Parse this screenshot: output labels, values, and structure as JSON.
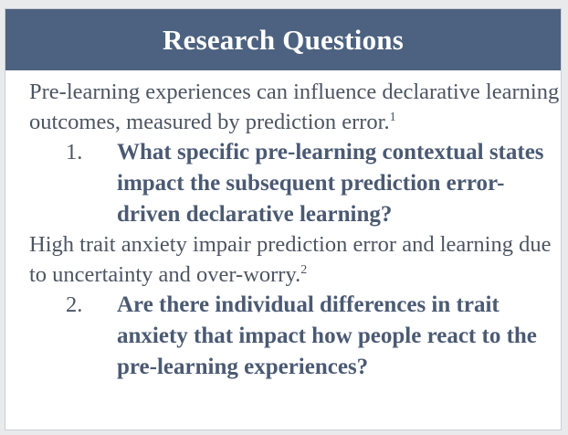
{
  "header": {
    "title": "Research Questions"
  },
  "content": {
    "intro_1": "Pre-learning experiences can influence declarative learning outcomes, measured by prediction error.",
    "intro_1_ref": "1",
    "question_1_number": "1.",
    "question_1": "What specific pre-learning contextual states impact the subsequent prediction error-driven declarative learning?",
    "intro_2": "High trait anxiety impair prediction error and learning due to uncertainty and over-worry.",
    "intro_2_ref": "2",
    "question_2_number": "2.",
    "question_2": "Are there individual differences in trait anxiety that impact how people react to the pre-learning experiences?"
  },
  "colors": {
    "header_bg": "#4d6280",
    "text": "#4d5562",
    "question_text": "#4b5a73"
  }
}
